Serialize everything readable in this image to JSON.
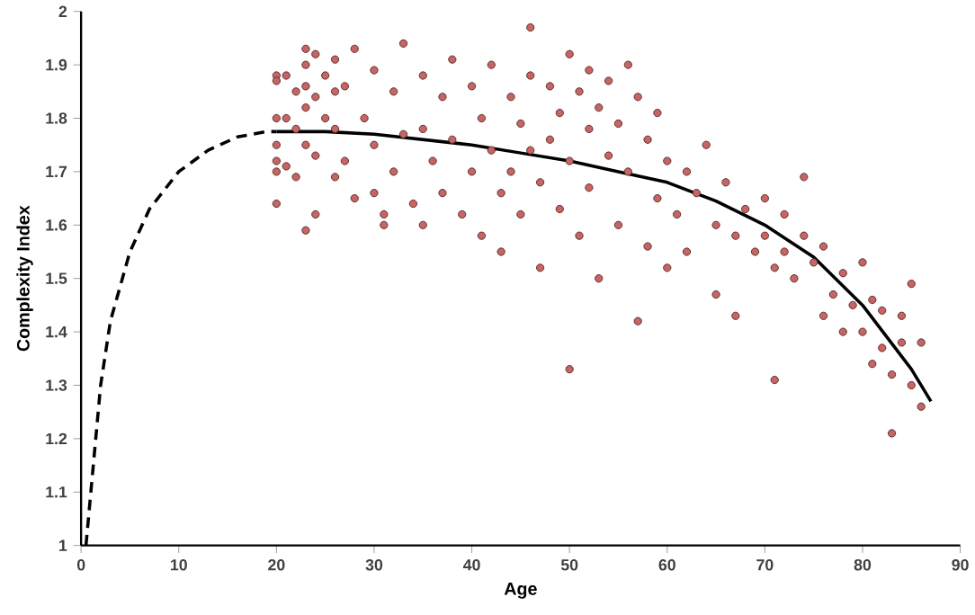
{
  "chart_data": {
    "type": "scatter",
    "xlabel": "Age",
    "ylabel": "Complexity Index",
    "xlim": [
      0,
      90
    ],
    "ylim": [
      1,
      2
    ],
    "xticks": [
      0,
      10,
      20,
      30,
      40,
      50,
      60,
      70,
      80,
      90
    ],
    "yticks": [
      1,
      1.1,
      1.2,
      1.3,
      1.4,
      1.5,
      1.6,
      1.7,
      1.8,
      1.9,
      2
    ],
    "grid": false,
    "series": [
      {
        "type": "scatter",
        "marker": "circle",
        "color": "#c86464",
        "x": [
          20,
          20,
          20,
          20,
          20,
          20,
          20,
          21,
          21,
          21,
          22,
          22,
          22,
          23,
          23,
          23,
          23,
          23,
          23,
          24,
          24,
          24,
          24,
          25,
          25,
          26,
          26,
          26,
          26,
          27,
          27,
          28,
          28,
          29,
          30,
          30,
          30,
          31,
          31,
          32,
          32,
          33,
          33,
          34,
          35,
          35,
          35,
          36,
          37,
          37,
          38,
          38,
          39,
          40,
          40,
          41,
          41,
          42,
          42,
          43,
          43,
          44,
          44,
          45,
          45,
          46,
          46,
          46,
          47,
          47,
          48,
          48,
          49,
          49,
          50,
          50,
          50,
          51,
          51,
          52,
          52,
          52,
          53,
          53,
          54,
          54,
          55,
          55,
          56,
          56,
          57,
          57,
          58,
          58,
          59,
          59,
          60,
          60,
          61,
          62,
          62,
          63,
          64,
          65,
          65,
          66,
          67,
          67,
          68,
          69,
          70,
          70,
          71,
          71,
          72,
          72,
          73,
          74,
          74,
          75,
          76,
          76,
          77,
          78,
          78,
          79,
          80,
          80,
          81,
          81,
          82,
          82,
          83,
          83,
          84,
          84,
          85,
          85,
          86,
          86
        ],
        "values": [
          1.88,
          1.87,
          1.8,
          1.75,
          1.72,
          1.7,
          1.64,
          1.88,
          1.8,
          1.71,
          1.85,
          1.78,
          1.69,
          1.93,
          1.9,
          1.86,
          1.82,
          1.75,
          1.59,
          1.92,
          1.84,
          1.73,
          1.62,
          1.88,
          1.8,
          1.91,
          1.85,
          1.78,
          1.69,
          1.86,
          1.72,
          1.93,
          1.65,
          1.8,
          1.89,
          1.75,
          1.66,
          1.62,
          1.6,
          1.85,
          1.7,
          1.94,
          1.77,
          1.64,
          1.88,
          1.78,
          1.6,
          1.72,
          1.84,
          1.66,
          1.91,
          1.76,
          1.62,
          1.86,
          1.7,
          1.8,
          1.58,
          1.9,
          1.74,
          1.66,
          1.55,
          1.84,
          1.7,
          1.79,
          1.62,
          1.97,
          1.88,
          1.74,
          1.68,
          1.52,
          1.86,
          1.76,
          1.81,
          1.63,
          1.92,
          1.72,
          1.33,
          1.85,
          1.58,
          1.89,
          1.78,
          1.67,
          1.82,
          1.5,
          1.87,
          1.73,
          1.79,
          1.6,
          1.9,
          1.7,
          1.84,
          1.42,
          1.76,
          1.56,
          1.81,
          1.65,
          1.72,
          1.52,
          1.62,
          1.7,
          1.55,
          1.66,
          1.75,
          1.6,
          1.47,
          1.68,
          1.58,
          1.43,
          1.63,
          1.55,
          1.65,
          1.58,
          1.31,
          1.52,
          1.62,
          1.55,
          1.5,
          1.69,
          1.58,
          1.53,
          1.56,
          1.43,
          1.47,
          1.4,
          1.51,
          1.45,
          1.53,
          1.4,
          1.46,
          1.34,
          1.44,
          1.37,
          1.21,
          1.32,
          1.43,
          1.38,
          1.49,
          1.3,
          1.26,
          1.38
        ]
      },
      {
        "type": "line",
        "color": "#000000",
        "line_style": "solid",
        "marker": "none",
        "x": [
          20,
          25,
          30,
          35,
          40,
          45,
          50,
          55,
          60,
          65,
          70,
          75,
          80,
          85,
          87
        ],
        "values": [
          1.775,
          1.775,
          1.77,
          1.76,
          1.75,
          1.735,
          1.72,
          1.7,
          1.68,
          1.645,
          1.6,
          1.54,
          1.45,
          1.33,
          1.27
        ]
      },
      {
        "type": "line",
        "color": "#000000",
        "line_style": "dashed",
        "marker": "none",
        "x": [
          0.5,
          1,
          2,
          3,
          5,
          7,
          10,
          13,
          16,
          19,
          20
        ],
        "values": [
          1.0,
          1.1,
          1.3,
          1.42,
          1.55,
          1.63,
          1.7,
          1.74,
          1.765,
          1.775,
          1.775
        ]
      }
    ]
  }
}
